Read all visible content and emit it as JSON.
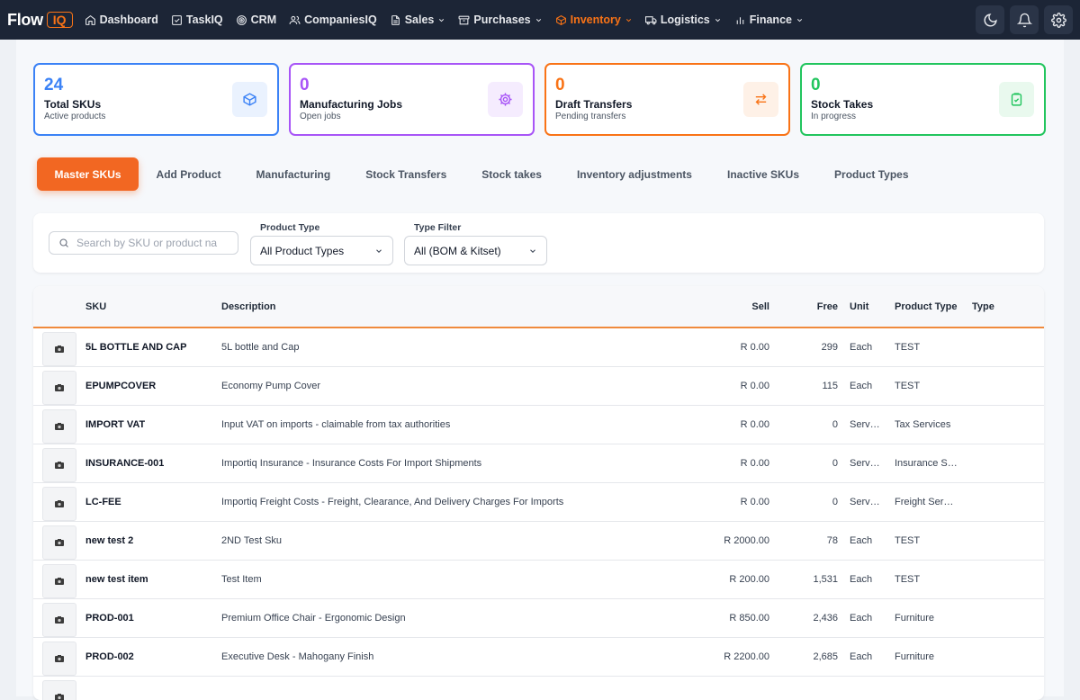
{
  "brand": {
    "name": "Flow",
    "badge": "IQ"
  },
  "nav": [
    {
      "label": "Dashboard",
      "icon": "home-icon",
      "dropdown": false,
      "active": false
    },
    {
      "label": "TaskIQ",
      "icon": "checkbox-icon",
      "dropdown": false,
      "active": false
    },
    {
      "label": "CRM",
      "icon": "target-icon",
      "dropdown": false,
      "active": false
    },
    {
      "label": "CompaniesIQ",
      "icon": "users-icon",
      "dropdown": false,
      "active": false
    },
    {
      "label": "Sales",
      "icon": "document-icon",
      "dropdown": true,
      "active": false
    },
    {
      "label": "Purchases",
      "icon": "archive-icon",
      "dropdown": true,
      "active": false
    },
    {
      "label": "Inventory",
      "icon": "package-icon",
      "dropdown": true,
      "active": true
    },
    {
      "label": "Logistics",
      "icon": "truck-icon",
      "dropdown": true,
      "active": false
    },
    {
      "label": "Finance",
      "icon": "bar-chart-icon",
      "dropdown": true,
      "active": false
    }
  ],
  "toolbar_icons": [
    "moon-icon",
    "bell-icon",
    "gear-icon"
  ],
  "colors": {
    "accent": "#f97316",
    "nav_bg": "#1c2536",
    "blue": "#3b82f6",
    "purple": "#a855f7",
    "orange": "#f97316",
    "green": "#22c55e"
  },
  "stats": [
    {
      "value": "24",
      "title": "Total SKUs",
      "subtitle": "Active products",
      "icon": "cube-icon",
      "color": "#3b82f6",
      "tint": "#eaf2fe"
    },
    {
      "value": "0",
      "title": "Manufacturing Jobs",
      "subtitle": "Open jobs",
      "icon": "gear-icon",
      "color": "#a855f7",
      "tint": "#f5ecfe"
    },
    {
      "value": "0",
      "title": "Draft Transfers",
      "subtitle": "Pending transfers",
      "icon": "transfer-arrows-icon",
      "color": "#f97316",
      "tint": "#fef1e7"
    },
    {
      "value": "0",
      "title": "Stock Takes",
      "subtitle": "In progress",
      "icon": "clipboard-check-icon",
      "color": "#22c55e",
      "tint": "#e9f9ee"
    }
  ],
  "tabs": [
    "Master SKUs",
    "Add Product",
    "Manufacturing",
    "Stock Transfers",
    "Stock takes",
    "Inventory adjustments",
    "Inactive SKUs",
    "Product Types"
  ],
  "active_tab": "Master SKUs",
  "filters": {
    "search_placeholder": "Search by SKU or product na",
    "product_type_label": "Product Type",
    "product_type_value": "All Product Types",
    "type_filter_label": "Type Filter",
    "type_filter_value": "All (BOM & Kitset)"
  },
  "table": {
    "headers": {
      "sku": "SKU",
      "description": "Description",
      "sell": "Sell",
      "free": "Free",
      "unit": "Unit",
      "product_type": "Product Type",
      "type": "Type"
    },
    "rows": [
      {
        "sku": "5L BOTTLE AND CAP",
        "description": "5L bottle and Cap",
        "sell": "R 0.00",
        "free": "299",
        "unit": "Each",
        "product_type": "TEST"
      },
      {
        "sku": "EPUMPCOVER",
        "description": "Economy Pump Cover",
        "sell": "R 0.00",
        "free": "115",
        "unit": "Each",
        "product_type": "TEST"
      },
      {
        "sku": "IMPORT VAT",
        "description": "Input VAT on imports - claimable from tax authorities",
        "sell": "R 0.00",
        "free": "0",
        "unit": "Serv…",
        "product_type": "Tax Services"
      },
      {
        "sku": "INSURANCE-001",
        "description": "Importiq Insurance - Insurance Costs For Import Shipments",
        "sell": "R 0.00",
        "free": "0",
        "unit": "Serv…",
        "product_type": "Insurance S…"
      },
      {
        "sku": "LC-FEE",
        "description": "Importiq Freight Costs - Freight, Clearance, And Delivery Charges For Imports",
        "sell": "R 0.00",
        "free": "0",
        "unit": "Serv…",
        "product_type": "Freight Serv…"
      },
      {
        "sku": "new test 2",
        "description": "2ND Test Sku",
        "sell": "R 2000.00",
        "free": "78",
        "unit": "Each",
        "product_type": "TEST"
      },
      {
        "sku": "new test item",
        "description": "Test Item",
        "sell": "R 200.00",
        "free": "1,531",
        "unit": "Each",
        "product_type": "TEST"
      },
      {
        "sku": "PROD-001",
        "description": "Premium Office Chair - Ergonomic Design",
        "sell": "R 850.00",
        "free": "2,436",
        "unit": "Each",
        "product_type": "Furniture"
      },
      {
        "sku": "PROD-002",
        "description": "Executive Desk - Mahogany Finish",
        "sell": "R 2200.00",
        "free": "2,685",
        "unit": "Each",
        "product_type": "Furniture"
      },
      {
        "sku": "",
        "description": "",
        "sell": "",
        "free": "",
        "unit": "",
        "product_type": ""
      }
    ]
  }
}
